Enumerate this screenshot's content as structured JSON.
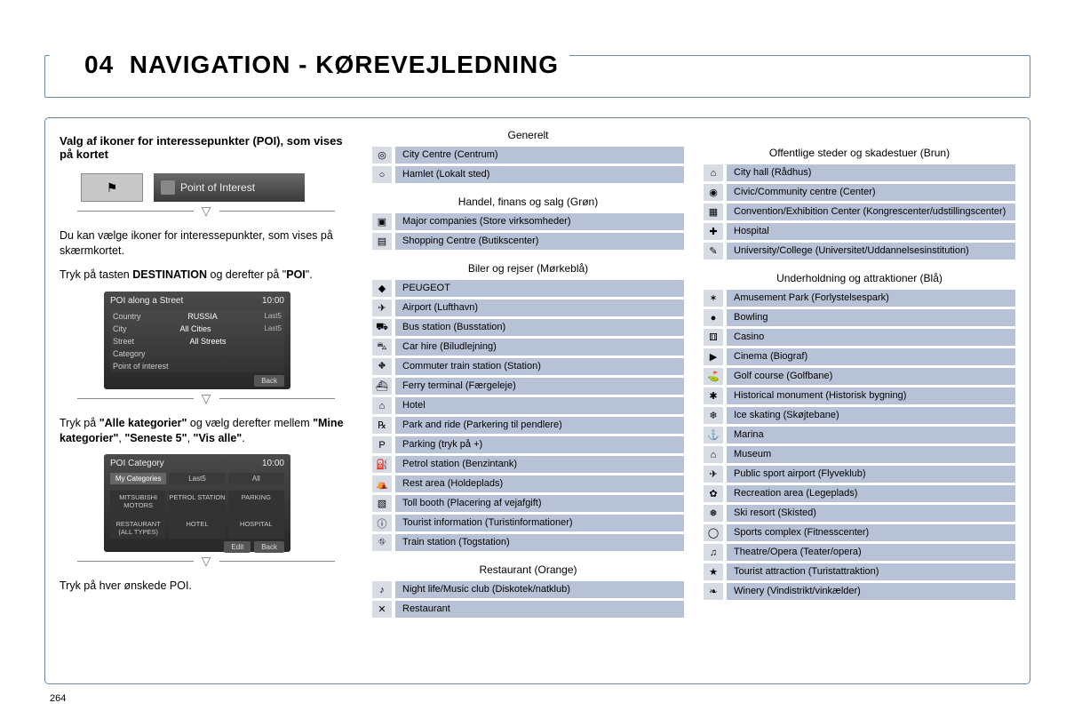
{
  "page_number": "264",
  "header": {
    "section_num": "04",
    "title": "NAVIGATION - KØREVEJLEDNING"
  },
  "left": {
    "subtitle": "Valg af ikoner for interessepunkter (POI), som vises på kortet",
    "poi_button_label": "Point of Interest",
    "instr1a": "Du kan vælge ikoner for interessepunkter, som vises på skærmkortet.",
    "instr1b_pre": "Tryk på tasten ",
    "instr1b_b1": "DESTINATION",
    "instr1b_mid": " og derefter på \"",
    "instr1b_b2": "POI",
    "instr1b_post": "\".",
    "screen1": {
      "title": "POI along a Street",
      "time": "10:00",
      "rows": [
        {
          "k": "Country",
          "v": "RUSSIA",
          "r": "Last5"
        },
        {
          "k": "City",
          "v": "All Cities",
          "r": "Last5"
        },
        {
          "k": "Street",
          "v": "All Streets",
          "r": ""
        },
        {
          "k": "Category",
          "v": "",
          "r": ""
        },
        {
          "k": "Point of interest",
          "v": "",
          "r": ""
        }
      ],
      "back": "Back"
    },
    "instr2_pre": "Tryk på ",
    "instr2_b1": "\"Alle kategorier\"",
    "instr2_mid1": " og vælg derefter mellem ",
    "instr2_b2": "\"Mine kategorier\"",
    "instr2_mid2": ", ",
    "instr2_b3": "\"Seneste 5\"",
    "instr2_mid3": ", ",
    "instr2_b4": "\"Vis alle\"",
    "instr2_post": ".",
    "screen2": {
      "title": "POI Category",
      "time": "10:00",
      "tabs": [
        "My Categories",
        "Last5",
        "All"
      ],
      "cells_row1": [
        "MITSUBISHI MOTORS",
        "PETROL STATION",
        "PARKING"
      ],
      "cells_row2": [
        "RESTAURANT (ALL TYPES)",
        "HOTEL",
        "HOSPITAL"
      ],
      "edit": "Edit",
      "back": "Back"
    },
    "instr3": "Tryk på hver ønskede POI."
  },
  "mid": {
    "groups": [
      {
        "heading": "Generelt",
        "items": [
          {
            "i": "◎",
            "t": "City Centre (Centrum)"
          },
          {
            "i": "○",
            "t": "Hamlet (Lokalt sted)"
          }
        ]
      },
      {
        "heading": "Handel, finans og salg (Grøn)",
        "items": [
          {
            "i": "▣",
            "t": "Major companies (Store virksomheder)"
          },
          {
            "i": "▤",
            "t": "Shopping Centre (Butikscenter)"
          }
        ]
      },
      {
        "heading": "Biler og rejser (Mørkeblå)",
        "items": [
          {
            "i": "◆",
            "t": "PEUGEOT"
          },
          {
            "i": "✈",
            "t": "Airport (Lufthavn)"
          },
          {
            "i": "⛟",
            "t": "Bus station (Busstation)"
          },
          {
            "i": "⛍",
            "t": "Car hire (Biludlejning)"
          },
          {
            "i": "⛖",
            "t": "Commuter train station (Station)"
          },
          {
            "i": "⛴",
            "t": "Ferry terminal (Færgeleje)"
          },
          {
            "i": "⌂",
            "t": "Hotel"
          },
          {
            "i": "℞",
            "t": "Park and ride (Parkering til pendlere)"
          },
          {
            "i": "P",
            "t": "Parking (tryk på +)"
          },
          {
            "i": "⛽",
            "t": "Petrol station (Benzintank)"
          },
          {
            "i": "⛺",
            "t": "Rest area (Holdeplads)"
          },
          {
            "i": "▧",
            "t": "Toll booth (Placering af vejafgift)"
          },
          {
            "i": "ⓘ",
            "t": "Tourist information (Turistinformationer)"
          },
          {
            "i": "⛗",
            "t": "Train station (Togstation)"
          }
        ]
      },
      {
        "heading": "Restaurant (Orange)",
        "items": [
          {
            "i": "♪",
            "t": "Night life/Music club (Diskotek/natklub)"
          },
          {
            "i": "✕",
            "t": "Restaurant"
          }
        ]
      }
    ]
  },
  "right": {
    "groups": [
      {
        "heading": "Offentlige steder og skadestuer (Brun)",
        "items": [
          {
            "i": "⌂",
            "t": "City hall (Rådhus)"
          },
          {
            "i": "◉",
            "t": "Civic/Community centre (Center)"
          },
          {
            "i": "▦",
            "t": "Convention/Exhibition Center (Kongrescenter/udstillingscenter)"
          },
          {
            "i": "✚",
            "t": "Hospital"
          },
          {
            "i": "✎",
            "t": "University/College (Universitet/Uddannelsesinstitution)"
          }
        ]
      },
      {
        "heading": "Underholdning og attraktioner (Blå)",
        "items": [
          {
            "i": "✶",
            "t": "Amusement Park (Forlystelsespark)"
          },
          {
            "i": "●",
            "t": "Bowling"
          },
          {
            "i": "⚅",
            "t": "Casino"
          },
          {
            "i": "▶",
            "t": "Cinema (Biograf)"
          },
          {
            "i": "⛳",
            "t": "Golf course (Golfbane)"
          },
          {
            "i": "✱",
            "t": "Historical monument (Historisk bygning)"
          },
          {
            "i": "❄",
            "t": "Ice skating (Skøjtebane)"
          },
          {
            "i": "⚓",
            "t": "Marina"
          },
          {
            "i": "⌂",
            "t": "Museum"
          },
          {
            "i": "✈",
            "t": "Public sport airport (Flyveklub)"
          },
          {
            "i": "✿",
            "t": "Recreation area (Legeplads)"
          },
          {
            "i": "❅",
            "t": "Ski resort (Skisted)"
          },
          {
            "i": "◯",
            "t": "Sports complex (Fitnesscenter)"
          },
          {
            "i": "♫",
            "t": "Theatre/Opera (Teater/opera)"
          },
          {
            "i": "★",
            "t": "Tourist attraction (Turistattraktion)"
          },
          {
            "i": "❧",
            "t": "Winery (Vindistrikt/vinkælder)"
          }
        ]
      }
    ]
  }
}
